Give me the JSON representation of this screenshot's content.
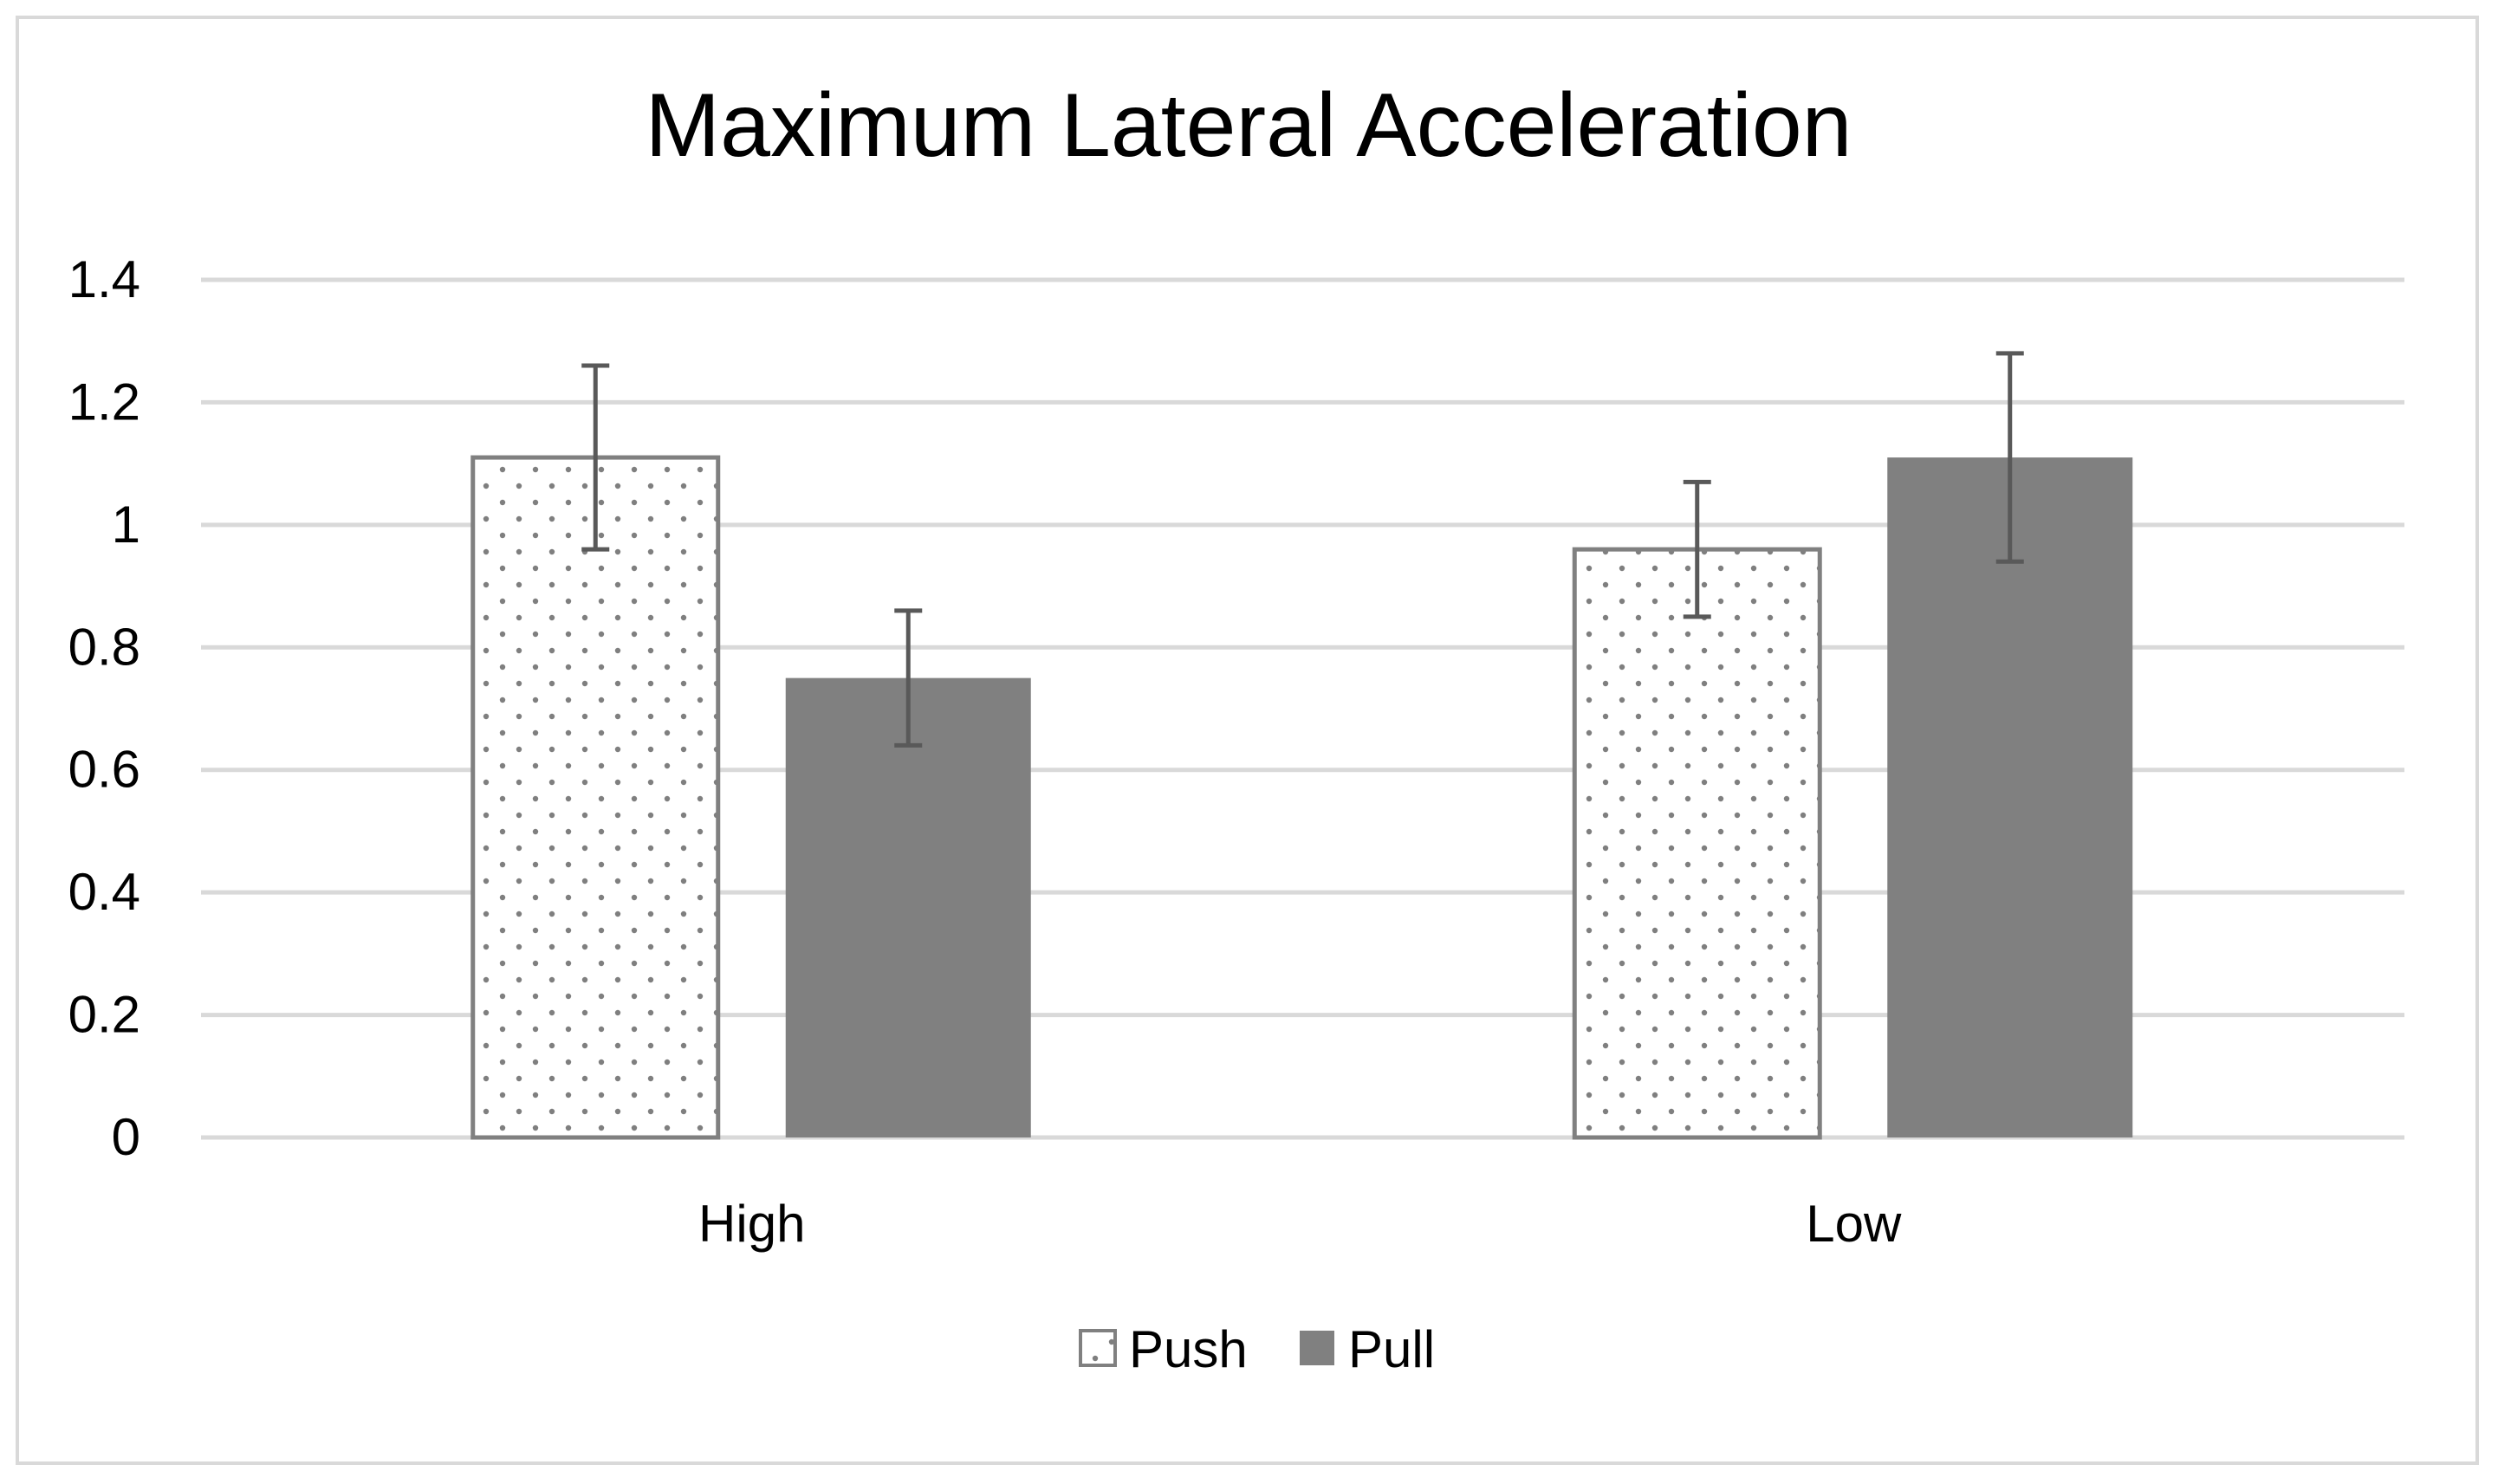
{
  "chart_data": {
    "type": "bar",
    "title": "Maximum Lateral Acceleration",
    "xlabel": "",
    "ylabel": "",
    "categories": [
      "High",
      "Low"
    ],
    "series": [
      {
        "name": "Push",
        "values": [
          1.11,
          0.96
        ],
        "errors": [
          0.15,
          0.11
        ],
        "style": "dotted-outline",
        "color": "#808080"
      },
      {
        "name": "Pull",
        "values": [
          0.75,
          1.11
        ],
        "errors": [
          0.11,
          0.17
        ],
        "style": "solid",
        "color": "#808080"
      }
    ],
    "ylim": [
      0,
      1.4
    ],
    "yticks": [
      0,
      0.2,
      0.4,
      0.6,
      0.8,
      1,
      1.2,
      1.4
    ],
    "ytick_labels": [
      "0",
      "0.2",
      "0.4",
      "0.6",
      "0.8",
      "1",
      "1.2",
      "1.4"
    ],
    "grid": true,
    "legend": "bottom-center"
  },
  "colors": {
    "grid": "#d9d9d9",
    "bar_fill": "#808080",
    "bar_outline": "#808080",
    "dot": "#7f7f7f",
    "error_bar": "#595959"
  }
}
